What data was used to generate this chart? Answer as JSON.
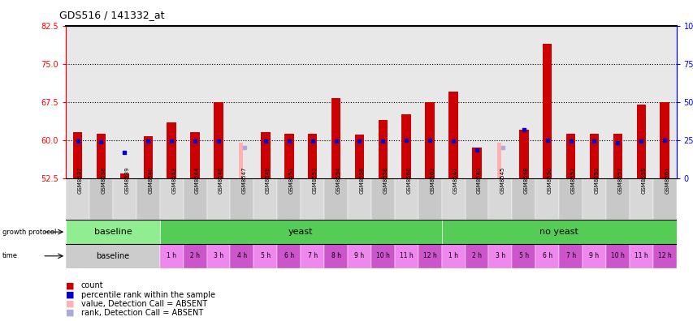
{
  "title": "GDS516 / 141332_at",
  "samples": [
    "GSM8537",
    "GSM8538",
    "GSM8539",
    "GSM8540",
    "GSM8542",
    "GSM8544",
    "GSM8546",
    "GSM8547",
    "GSM8549",
    "GSM8551",
    "GSM8553",
    "GSM8554",
    "GSM8556",
    "GSM8558",
    "GSM8560",
    "GSM8562",
    "GSM8541",
    "GSM8543",
    "GSM8545",
    "GSM8548",
    "GSM8550",
    "GSM8552",
    "GSM8555",
    "GSM8557",
    "GSM8559",
    "GSM8561"
  ],
  "red_bar_heights": [
    61.5,
    61.2,
    53.5,
    60.8,
    63.5,
    61.5,
    67.5,
    52.5,
    61.5,
    61.2,
    61.2,
    68.2,
    61.0,
    64.0,
    65.0,
    67.5,
    69.5,
    58.5,
    52.5,
    62.0,
    79.0,
    61.2,
    61.2,
    61.2,
    67.0,
    67.5
  ],
  "blue_square_y": [
    59.8,
    59.7,
    57.5,
    59.8,
    59.8,
    59.8,
    59.8,
    null,
    59.8,
    59.8,
    59.8,
    59.8,
    59.8,
    59.8,
    60.0,
    60.0,
    59.8,
    58.0,
    null,
    62.0,
    60.0,
    59.8,
    59.8,
    59.5,
    59.8,
    60.0
  ],
  "pink_bar_heights": [
    null,
    null,
    null,
    null,
    null,
    null,
    null,
    7.0,
    null,
    null,
    null,
    null,
    null,
    null,
    null,
    null,
    null,
    null,
    7.0,
    null,
    null,
    null,
    null,
    null,
    null,
    null
  ],
  "light_blue_y": [
    null,
    null,
    null,
    null,
    null,
    null,
    null,
    58.5,
    null,
    null,
    null,
    null,
    null,
    null,
    null,
    null,
    null,
    null,
    58.5,
    null,
    null,
    null,
    null,
    null,
    null,
    null
  ],
  "ylim_left": [
    52.5,
    82.5
  ],
  "ylim_right": [
    0,
    100
  ],
  "yticks_left": [
    52.5,
    60.0,
    67.5,
    75.0,
    82.5
  ],
  "yticks_right": [
    0,
    25,
    50,
    75,
    100
  ],
  "ytick_labels_right": [
    "0",
    "25",
    "50",
    "75",
    "100%"
  ],
  "hlines": [
    60.0,
    67.5,
    75.0
  ],
  "bar_color": "#cc0000",
  "blue_color": "#0000cc",
  "pink_color": "#ffb0b0",
  "light_blue_color": "#aaaadd",
  "plot_bg": "#e8e8e8",
  "baseline_color": "#90ee90",
  "yeast_color": "#55cc55",
  "noyeast_color": "#55cc55",
  "time_color1": "#ee88ee",
  "time_color2": "#cc55cc",
  "baseline_time_color": "#cccccc"
}
